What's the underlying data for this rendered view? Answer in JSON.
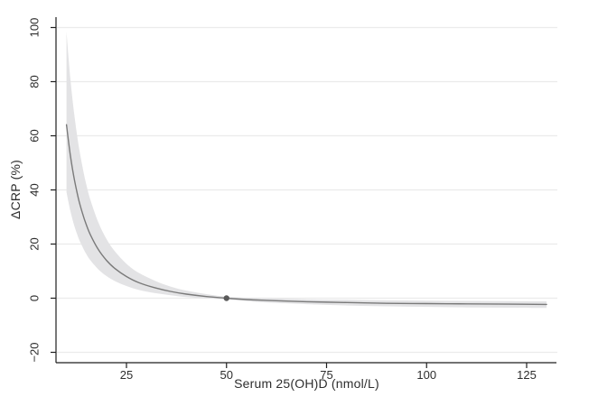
{
  "figure": {
    "background": "#ffffff"
  },
  "chart_data": {
    "type": "line",
    "title": "",
    "xlabel": "Serum 25(OH)D (nmol/L)",
    "ylabel": "ΔCRP (%)",
    "grid": "horizontal-only",
    "legend": "none",
    "x_axis": {
      "min": 7.5,
      "max": 132.5,
      "ticks": [
        {
          "v": 25,
          "label": "25"
        },
        {
          "v": 50,
          "label": "50"
        },
        {
          "v": 75,
          "label": "75"
        },
        {
          "v": 100,
          "label": "100"
        },
        {
          "v": 125,
          "label": "125"
        }
      ]
    },
    "y_axis": {
      "min": -23.5,
      "max": 104,
      "ticks": [
        {
          "v": -20,
          "label": "−20"
        },
        {
          "v": 0,
          "label": "0"
        },
        {
          "v": 20,
          "label": "20"
        },
        {
          "v": 40,
          "label": "40"
        },
        {
          "v": 60,
          "label": "60"
        },
        {
          "v": 80,
          "label": "80"
        },
        {
          "v": 100,
          "label": "100"
        }
      ]
    },
    "series": [
      {
        "name": "estimated-change-in-crp-with-95ci",
        "x": [
          10,
          11,
          12,
          13,
          14,
          15,
          16,
          18,
          20,
          22,
          25,
          28,
          32,
          36,
          40,
          45,
          50,
          55,
          60,
          70,
          80,
          90,
          100,
          110,
          120,
          130
        ],
        "y": [
          64.1,
          52.5,
          43.7,
          36.8,
          31.4,
          27.0,
          23.4,
          17.9,
          14.0,
          11.1,
          8.0,
          5.8,
          3.9,
          2.5,
          1.5,
          0.6,
          0.0,
          -0.5,
          -0.8,
          -1.3,
          -1.6,
          -1.9,
          -2.0,
          -2.1,
          -2.2,
          -2.3
        ],
        "ci_upper": [
          98.5,
          80.8,
          67.4,
          56.9,
          48.6,
          41.8,
          36.3,
          27.9,
          21.9,
          17.5,
          12.7,
          9.4,
          6.5,
          4.3,
          2.8,
          1.5,
          0.5,
          0.2,
          0.0,
          -0.4,
          -0.6,
          -0.8,
          -0.9,
          -1.0,
          -1.1,
          -1.2
        ],
        "ci_lower": [
          39.2,
          32.1,
          26.6,
          22.3,
          19.0,
          16.2,
          14.0,
          10.6,
          8.2,
          6.4,
          4.5,
          3.1,
          1.9,
          1.1,
          0.4,
          -0.1,
          -0.5,
          -1.1,
          -1.6,
          -2.2,
          -2.7,
          -3.0,
          -3.2,
          -3.4,
          -3.5,
          -3.6
        ]
      }
    ],
    "reference_point": {
      "x": 50,
      "y": 0
    },
    "colors": {
      "line": "#7a7a7a",
      "ci_band": "#e3e3e5",
      "reference_dot": "#5a5a5a",
      "grid": "#ebebeb",
      "axis": "#1f1f1f",
      "text": "#2e2e2e",
      "background": "#ffffff"
    }
  }
}
